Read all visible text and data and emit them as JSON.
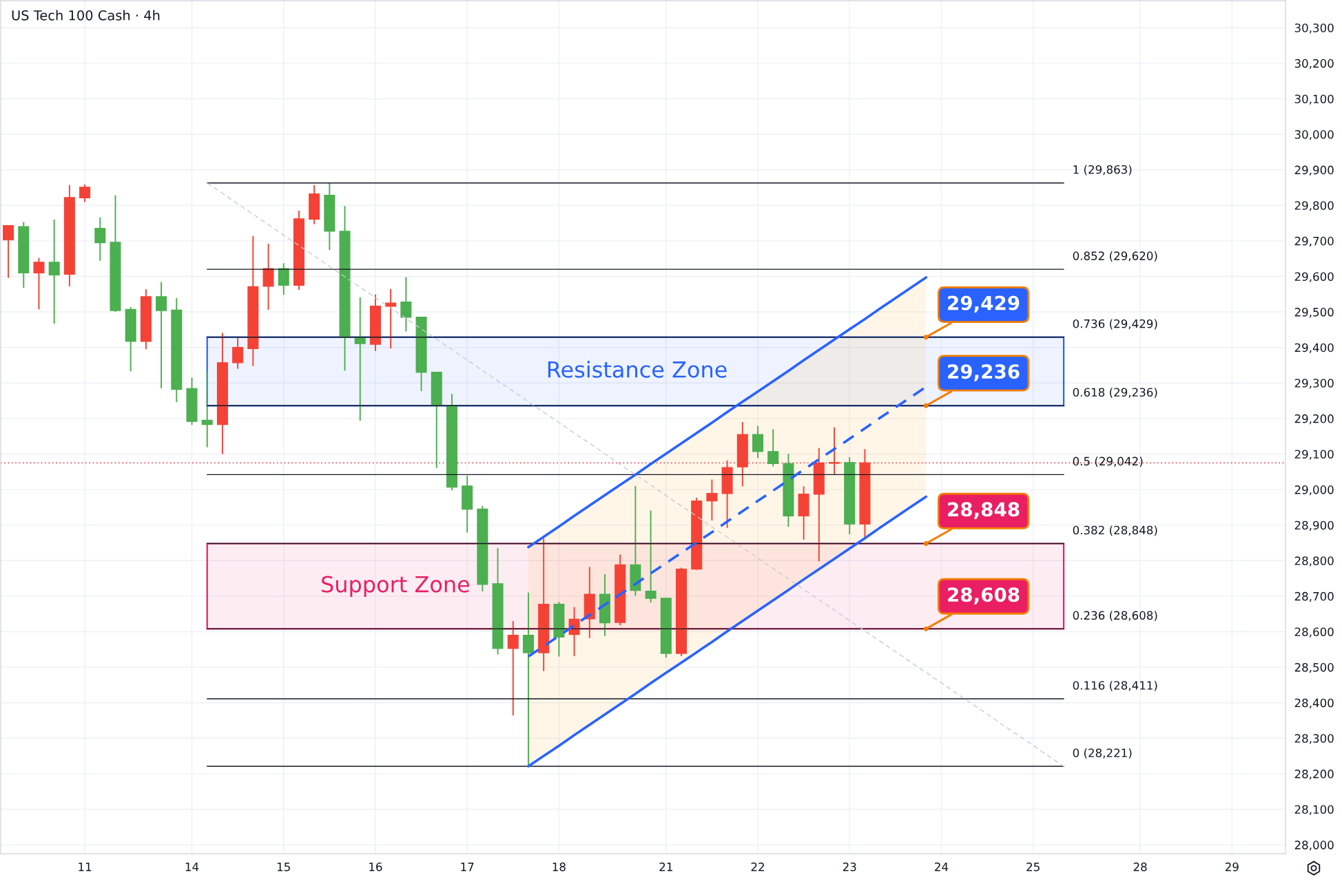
{
  "chart_data": {
    "type": "candlestick",
    "title": "US Tech 100 Cash · 4h",
    "categories": [
      null,
      null,
      null,
      null,
      null,
      "11",
      null,
      null,
      null,
      null,
      null,
      null,
      "14",
      null,
      null,
      null,
      null,
      null,
      "15",
      null,
      null,
      null,
      null,
      null,
      "16",
      null,
      null,
      null,
      null,
      null,
      "17",
      null,
      null,
      null,
      null,
      null,
      "18",
      null,
      null,
      null,
      null,
      null,
      null,
      "21",
      null,
      null,
      null,
      null,
      null,
      "22",
      null,
      null,
      null,
      null,
      null,
      "23",
      null,
      null,
      null,
      null,
      null,
      "24",
      null,
      null,
      null,
      null,
      null,
      "25",
      null,
      null,
      null,
      null,
      null,
      null,
      "28",
      null,
      null,
      null,
      null,
      null,
      "29",
      null,
      null,
      null
    ],
    "ohlc": [
      [
        29703,
        29744,
        29596,
        29743
      ],
      [
        29740,
        29753,
        29568,
        29610
      ],
      [
        29610,
        29652,
        29507,
        29640
      ],
      [
        29640,
        29760,
        29467,
        29604
      ],
      [
        29606,
        29857,
        29572,
        29822
      ],
      [
        29821,
        29859,
        29809,
        29851
      ],
      [
        29735,
        29766,
        29644,
        29695
      ],
      [
        29696,
        29828,
        29500,
        29504
      ],
      [
        29507,
        29514,
        29333,
        29417
      ],
      [
        29417,
        29564,
        29395,
        29543
      ],
      [
        29543,
        29584,
        29285,
        29504
      ],
      [
        29505,
        29539,
        29246,
        29282
      ],
      [
        29284,
        29315,
        29182,
        29192
      ],
      [
        29195,
        29333,
        29119,
        29183
      ],
      [
        29183,
        29441,
        29100,
        29357
      ],
      [
        29357,
        29429,
        29340,
        29400
      ],
      [
        29397,
        29714,
        29348,
        29571
      ],
      [
        29572,
        29692,
        29506,
        29622
      ],
      [
        29622,
        29637,
        29548,
        29575
      ],
      [
        29575,
        29785,
        29562,
        29762
      ],
      [
        29761,
        29857,
        29747,
        29832
      ],
      [
        29828,
        29863,
        29674,
        29727
      ],
      [
        29727,
        29798,
        29335,
        29429
      ],
      [
        29429,
        29541,
        29194,
        29411
      ],
      [
        29409,
        29549,
        29390,
        29516
      ],
      [
        29516,
        29564,
        29397,
        29525
      ],
      [
        29528,
        29598,
        29445,
        29485
      ],
      [
        29485,
        29485,
        29277,
        29330
      ],
      [
        29330,
        29330,
        29061,
        29237
      ],
      [
        29236,
        29269,
        28998,
        29007
      ],
      [
        29010,
        29039,
        28879,
        28945
      ],
      [
        28945,
        28954,
        28713,
        28733
      ],
      [
        28735,
        28835,
        28536,
        28553
      ],
      [
        28553,
        28630,
        28364,
        28590
      ],
      [
        28590,
        28710,
        28221,
        28541
      ],
      [
        28541,
        28862,
        28489,
        28677
      ],
      [
        28677,
        28684,
        28530,
        28585
      ],
      [
        28592,
        28669,
        28531,
        28635
      ],
      [
        28636,
        28782,
        28582,
        28705
      ],
      [
        28705,
        28762,
        28588,
        28625
      ],
      [
        28626,
        28817,
        28618,
        28788
      ],
      [
        28788,
        29010,
        28701,
        28716
      ],
      [
        28714,
        28941,
        28682,
        28694
      ],
      [
        28694,
        28694,
        28527,
        28539
      ],
      [
        28539,
        28780,
        28531,
        28776
      ],
      [
        28776,
        28977,
        28774,
        28968
      ],
      [
        28968,
        29028,
        28913,
        28989
      ],
      [
        28989,
        29082,
        28892,
        29062
      ],
      [
        29064,
        29190,
        29009,
        29155
      ],
      [
        29155,
        29179,
        29089,
        29107
      ],
      [
        29107,
        29170,
        29065,
        29073
      ],
      [
        29073,
        29101,
        28895,
        28926
      ],
      [
        28926,
        29009,
        28859,
        28987
      ],
      [
        28987,
        29117,
        28798,
        29075
      ],
      [
        29074,
        29175,
        29041,
        29076
      ],
      [
        29076,
        29091,
        28874,
        28903
      ],
      [
        28903,
        29114,
        28862,
        29075
      ],
      null,
      null,
      null,
      null,
      null,
      null,
      null,
      null,
      null,
      null,
      null,
      null,
      null,
      null,
      null,
      null,
      null,
      null,
      null,
      null,
      null,
      null,
      null,
      null,
      null,
      null,
      null
    ],
    "colors": [
      "#f44336",
      "#4caf50",
      "#f44336",
      "#4caf50",
      "#f44336",
      "#f44336",
      "#4caf50",
      "#4caf50",
      "#4caf50",
      "#f44336",
      "#4caf50",
      "#4caf50",
      "#4caf50",
      "#4caf50",
      "#f44336",
      "#f44336",
      "#f44336",
      "#f44336",
      "#4caf50",
      "#f44336",
      "#f44336",
      "#4caf50",
      "#4caf50",
      "#4caf50",
      "#f44336",
      "#f44336",
      "#4caf50",
      "#4caf50",
      "#4caf50",
      "#4caf50",
      "#4caf50",
      "#4caf50",
      "#4caf50",
      "#f44336",
      "#4caf50",
      "#f44336",
      "#4caf50",
      "#f44336",
      "#f44336",
      "#4caf50",
      "#f44336",
      "#4caf50",
      "#4caf50",
      "#4caf50",
      "#f44336",
      "#f44336",
      "#f44336",
      "#f44336",
      "#f44336",
      "#4caf50",
      "#4caf50",
      "#4caf50",
      "#f44336",
      "#f44336",
      "#f44336",
      "#4caf50",
      "#f44336",
      null,
      null,
      null,
      null,
      null,
      null,
      null,
      null,
      null,
      null,
      null,
      null,
      null,
      null,
      null,
      null,
      null,
      null,
      null,
      null,
      null,
      null,
      null,
      null,
      null,
      null,
      null
    ],
    "series": [
      {
        "type": "line",
        "name": "1 (29,863)",
        "color": "#131722",
        "values": [
          null,
          null,
          null,
          null,
          null,
          null,
          null,
          null,
          null,
          null,
          null,
          null,
          null,
          29863,
          29863,
          29863,
          29863,
          29863,
          29863,
          29863,
          29863,
          29863,
          29863,
          29863,
          29863,
          29863,
          29863,
          29863,
          29863,
          29863,
          29863,
          29863,
          29863,
          29863,
          29863,
          29863,
          29863,
          29863,
          29863,
          29863,
          29863,
          29863,
          29863,
          29863,
          29863,
          29863,
          29863,
          29863,
          29863,
          29863,
          29863,
          29863,
          29863,
          29863,
          29863,
          29863,
          29863,
          29863,
          29863,
          29863,
          29863,
          29863,
          29863,
          29863,
          29863,
          29863,
          29863,
          29863,
          29863,
          29863,
          null,
          null,
          null,
          null,
          null,
          null,
          null,
          null,
          null,
          null,
          null,
          null,
          null,
          null
        ]
      },
      {
        "type": "line",
        "name": "0.852 (29,620)",
        "color": "#131722",
        "values": [
          null,
          null,
          null,
          null,
          null,
          null,
          null,
          null,
          null,
          null,
          null,
          null,
          null,
          29620,
          29620,
          29620,
          29620,
          29620,
          29620,
          29620,
          29620,
          29620,
          29620,
          29620,
          29620,
          29620,
          29620,
          29620,
          29620,
          29620,
          29620,
          29620,
          29620,
          29620,
          29620,
          29620,
          29620,
          29620,
          29620,
          29620,
          29620,
          29620,
          29620,
          29620,
          29620,
          29620,
          29620,
          29620,
          29620,
          29620,
          29620,
          29620,
          29620,
          29620,
          29620,
          29620,
          29620,
          29620,
          29620,
          29620,
          29620,
          29620,
          29620,
          29620,
          29620,
          29620,
          29620,
          29620,
          29620,
          29620,
          null,
          null,
          null,
          null,
          null,
          null,
          null,
          null,
          null,
          null,
          null,
          null,
          null,
          null
        ]
      },
      {
        "type": "line",
        "name": "0.736 (29,429)",
        "color": "#131722",
        "values": [
          null,
          null,
          null,
          null,
          null,
          null,
          null,
          null,
          null,
          null,
          null,
          null,
          null,
          29429,
          29429,
          29429,
          29429,
          29429,
          29429,
          29429,
          29429,
          29429,
          29429,
          29429,
          29429,
          29429,
          29429,
          29429,
          29429,
          29429,
          29429,
          29429,
          29429,
          29429,
          29429,
          29429,
          29429,
          29429,
          29429,
          29429,
          29429,
          29429,
          29429,
          29429,
          29429,
          29429,
          29429,
          29429,
          29429,
          29429,
          29429,
          29429,
          29429,
          29429,
          29429,
          29429,
          29429,
          29429,
          29429,
          29429,
          29429,
          29429,
          29429,
          29429,
          29429,
          29429,
          29429,
          29429,
          29429,
          29429,
          null,
          null,
          null,
          null,
          null,
          null,
          null,
          null,
          null,
          null,
          null,
          null,
          null,
          null
        ]
      },
      {
        "type": "line",
        "name": "0.618 (29,236)",
        "color": "#131722",
        "values": [
          null,
          null,
          null,
          null,
          null,
          null,
          null,
          null,
          null,
          null,
          null,
          null,
          null,
          29236,
          29236,
          29236,
          29236,
          29236,
          29236,
          29236,
          29236,
          29236,
          29236,
          29236,
          29236,
          29236,
          29236,
          29236,
          29236,
          29236,
          29236,
          29236,
          29236,
          29236,
          29236,
          29236,
          29236,
          29236,
          29236,
          29236,
          29236,
          29236,
          29236,
          29236,
          29236,
          29236,
          29236,
          29236,
          29236,
          29236,
          29236,
          29236,
          29236,
          29236,
          29236,
          29236,
          29236,
          29236,
          29236,
          29236,
          29236,
          29236,
          29236,
          29236,
          29236,
          29236,
          29236,
          29236,
          29236,
          29236,
          null,
          null,
          null,
          null,
          null,
          null,
          null,
          null,
          null,
          null,
          null,
          null,
          null,
          null
        ]
      },
      {
        "type": "line",
        "name": "0.5 (29,042)",
        "color": "#131722",
        "values": [
          null,
          null,
          null,
          null,
          null,
          null,
          null,
          null,
          null,
          null,
          null,
          null,
          null,
          29042,
          29042,
          29042,
          29042,
          29042,
          29042,
          29042,
          29042,
          29042,
          29042,
          29042,
          29042,
          29042,
          29042,
          29042,
          29042,
          29042,
          29042,
          29042,
          29042,
          29042,
          29042,
          29042,
          29042,
          29042,
          29042,
          29042,
          29042,
          29042,
          29042,
          29042,
          29042,
          29042,
          29042,
          29042,
          29042,
          29042,
          29042,
          29042,
          29042,
          29042,
          29042,
          29042,
          29042,
          29042,
          29042,
          29042,
          29042,
          29042,
          29042,
          29042,
          29042,
          29042,
          29042,
          29042,
          29042,
          29042,
          null,
          null,
          null,
          null,
          null,
          null,
          null,
          null,
          null,
          null,
          null,
          null,
          null,
          null
        ]
      },
      {
        "type": "line",
        "name": "0.382 (28,848)",
        "color": "#131722",
        "values": [
          null,
          null,
          null,
          null,
          null,
          null,
          null,
          null,
          null,
          null,
          null,
          null,
          null,
          28848,
          28848,
          28848,
          28848,
          28848,
          28848,
          28848,
          28848,
          28848,
          28848,
          28848,
          28848,
          28848,
          28848,
          28848,
          28848,
          28848,
          28848,
          28848,
          28848,
          28848,
          28848,
          28848,
          28848,
          28848,
          28848,
          28848,
          28848,
          28848,
          28848,
          28848,
          28848,
          28848,
          28848,
          28848,
          28848,
          28848,
          28848,
          28848,
          28848,
          28848,
          28848,
          28848,
          28848,
          28848,
          28848,
          28848,
          28848,
          28848,
          28848,
          28848,
          28848,
          28848,
          28848,
          28848,
          28848,
          28848,
          null,
          null,
          null,
          null,
          null,
          null,
          null,
          null,
          null,
          null,
          null,
          null,
          null,
          null
        ]
      },
      {
        "type": "line",
        "name": "0.236 (28,608)",
        "color": "#131722",
        "values": [
          null,
          null,
          null,
          null,
          null,
          null,
          null,
          null,
          null,
          null,
          null,
          null,
          null,
          28608,
          28608,
          28608,
          28608,
          28608,
          28608,
          28608,
          28608,
          28608,
          28608,
          28608,
          28608,
          28608,
          28608,
          28608,
          28608,
          28608,
          28608,
          28608,
          28608,
          28608,
          28608,
          28608,
          28608,
          28608,
          28608,
          28608,
          28608,
          28608,
          28608,
          28608,
          28608,
          28608,
          28608,
          28608,
          28608,
          28608,
          28608,
          28608,
          28608,
          28608,
          28608,
          28608,
          28608,
          28608,
          28608,
          28608,
          28608,
          28608,
          28608,
          28608,
          28608,
          28608,
          28608,
          28608,
          28608,
          28608,
          null,
          null,
          null,
          null,
          null,
          null,
          null,
          null,
          null,
          null,
          null,
          null,
          null,
          null
        ]
      },
      {
        "type": "line",
        "name": "0.116 (28,411)",
        "color": "#131722",
        "values": [
          null,
          null,
          null,
          null,
          null,
          null,
          null,
          null,
          null,
          null,
          null,
          null,
          null,
          28411,
          28411,
          28411,
          28411,
          28411,
          28411,
          28411,
          28411,
          28411,
          28411,
          28411,
          28411,
          28411,
          28411,
          28411,
          28411,
          28411,
          28411,
          28411,
          28411,
          28411,
          28411,
          28411,
          28411,
          28411,
          28411,
          28411,
          28411,
          28411,
          28411,
          28411,
          28411,
          28411,
          28411,
          28411,
          28411,
          28411,
          28411,
          28411,
          28411,
          28411,
          28411,
          28411,
          28411,
          28411,
          28411,
          28411,
          28411,
          28411,
          28411,
          28411,
          28411,
          28411,
          28411,
          28411,
          28411,
          28411,
          null,
          null,
          null,
          null,
          null,
          null,
          null,
          null,
          null,
          null,
          null,
          null,
          null,
          null
        ]
      },
      {
        "type": "line",
        "name": "0 (28,221)",
        "color": "#131722",
        "values": [
          null,
          null,
          null,
          null,
          null,
          null,
          null,
          null,
          null,
          null,
          null,
          null,
          null,
          28221,
          28221,
          28221,
          28221,
          28221,
          28221,
          28221,
          28221,
          28221,
          28221,
          28221,
          28221,
          28221,
          28221,
          28221,
          28221,
          28221,
          28221,
          28221,
          28221,
          28221,
          28221,
          28221,
          28221,
          28221,
          28221,
          28221,
          28221,
          28221,
          28221,
          28221,
          28221,
          28221,
          28221,
          28221,
          28221,
          28221,
          28221,
          28221,
          28221,
          28221,
          28221,
          28221,
          28221,
          28221,
          28221,
          28221,
          28221,
          28221,
          28221,
          28221,
          28221,
          28221,
          28221,
          28221,
          28221,
          28221,
          null,
          null,
          null,
          null,
          null,
          null,
          null,
          null,
          null,
          null,
          null,
          null,
          null,
          null
        ]
      },
      {
        "type": "line",
        "color": "#c8cbd2",
        "line_style": "dashed",
        "values": [
          null,
          null,
          null,
          null,
          null,
          null,
          null,
          null,
          null,
          null,
          null,
          null,
          null,
          29863,
          29834,
          29804,
          29775,
          29746,
          29716,
          29687,
          29658,
          29628,
          29599,
          29570,
          29540,
          29511,
          29482,
          29452,
          29423,
          29394,
          29365,
          29335,
          29306,
          29277,
          29247,
          29218,
          29189,
          29159,
          29130,
          29101,
          29071,
          29042,
          29013,
          28983,
          28954,
          28925,
          28895,
          28866,
          28837,
          28807,
          28778,
          28749,
          28719,
          28690,
          28661,
          28631,
          28602,
          28573,
          28544,
          28514,
          28485,
          28456,
          28426,
          28397,
          28368,
          28338,
          28309,
          28280,
          28250,
          28221,
          null,
          null,
          null,
          null,
          null,
          null,
          null,
          null,
          null,
          null,
          null,
          null,
          null,
          null
        ]
      },
      {
        "type": "line",
        "color": "#2962ff",
        "line_style": "dashed",
        "values": [
          null,
          null,
          null,
          null,
          null,
          null,
          null,
          null,
          null,
          null,
          null,
          null,
          null,
          null,
          null,
          null,
          null,
          null,
          null,
          null,
          null,
          null,
          null,
          null,
          null,
          null,
          null,
          null,
          null,
          null,
          null,
          null,
          null,
          null,
          28530,
          28559,
          28588,
          28618,
          28647,
          28676,
          28705,
          28734,
          28764,
          28793,
          28822,
          28851,
          28880,
          28910,
          28939,
          28968,
          28997,
          29026,
          29056,
          29085,
          29114,
          29143,
          29172,
          29202,
          29231,
          29260,
          29289,
          null,
          null,
          null,
          null,
          null,
          null,
          null,
          null,
          null,
          null,
          null,
          null,
          null,
          null,
          null,
          null,
          null,
          null,
          null,
          null,
          null,
          null,
          null
        ],
        "lower": [
          null,
          null,
          null,
          null,
          null,
          null,
          null,
          null,
          null,
          null,
          null,
          null,
          null,
          null,
          null,
          null,
          null,
          null,
          null,
          null,
          null,
          null,
          null,
          null,
          null,
          null,
          null,
          null,
          null,
          null,
          null,
          null,
          null,
          null,
          28221,
          28250,
          28279,
          28309,
          28338,
          28367,
          28396,
          28425,
          28455,
          28484,
          28513,
          28542,
          28571,
          28601,
          28630,
          28659,
          28688,
          28717,
          28747,
          28776,
          28805,
          28834,
          28863,
          28893,
          28922,
          28951,
          28980,
          null,
          null,
          null,
          null,
          null,
          null,
          null,
          null,
          null,
          null,
          null,
          null,
          null,
          null,
          null,
          null,
          null,
          null,
          null,
          null,
          null,
          null,
          null
        ],
        "upper": [
          null,
          null,
          null,
          null,
          null,
          null,
          null,
          null,
          null,
          null,
          null,
          null,
          null,
          null,
          null,
          null,
          null,
          null,
          null,
          null,
          null,
          null,
          null,
          null,
          null,
          null,
          null,
          null,
          null,
          null,
          null,
          null,
          null,
          null,
          28838,
          28867,
          28896,
          28926,
          28955,
          28984,
          29013,
          29042,
          29072,
          29101,
          29130,
          29159,
          29188,
          29218,
          29247,
          29276,
          29305,
          29334,
          29364,
          29393,
          29422,
          29451,
          29480,
          29510,
          29539,
          29568,
          29597,
          null,
          null,
          null,
          null,
          null,
          null,
          null,
          null,
          null,
          null,
          null,
          null,
          null,
          null,
          null,
          null,
          null,
          null,
          null,
          null,
          null,
          null,
          null
        ]
      },
      {
        "type": "line",
        "color": "#2962ff",
        "values": [
          null,
          null,
          null,
          null,
          null,
          null,
          null,
          null,
          null,
          null,
          null,
          null,
          null,
          null,
          null,
          null,
          null,
          null,
          null,
          null,
          null,
          null,
          null,
          null,
          null,
          null,
          null,
          null,
          null,
          null,
          null,
          null,
          null,
          null,
          28221,
          28250,
          28279,
          28309,
          28338,
          28367,
          28396,
          28425,
          28455,
          28484,
          28513,
          28542,
          28571,
          28601,
          28630,
          28659,
          28688,
          28717,
          28747,
          28776,
          28805,
          28834,
          28863,
          28893,
          28922,
          28951,
          28980,
          null,
          null,
          null,
          null,
          null,
          null,
          null,
          null,
          null,
          null,
          null,
          null,
          null,
          null,
          null,
          null,
          null,
          null,
          null,
          null,
          null,
          null,
          null
        ]
      },
      {
        "type": "line",
        "color": "#2962ff",
        "values": [
          null,
          null,
          null,
          null,
          null,
          null,
          null,
          null,
          null,
          null,
          null,
          null,
          null,
          null,
          null,
          null,
          null,
          null,
          null,
          null,
          null,
          null,
          null,
          null,
          null,
          null,
          null,
          null,
          null,
          null,
          null,
          null,
          null,
          null,
          28838,
          28867,
          28896,
          28926,
          28955,
          28984,
          29013,
          29042,
          29072,
          29101,
          29130,
          29159,
          29188,
          29218,
          29247,
          29276,
          29305,
          29334,
          29364,
          29393,
          29422,
          29451,
          29480,
          29510,
          29539,
          29568,
          29597,
          null,
          null,
          null,
          null,
          null,
          null,
          null,
          null,
          null,
          null,
          null,
          null,
          null,
          null,
          null,
          null,
          null,
          null,
          null,
          null,
          null,
          null,
          null
        ]
      }
    ],
    "bands": [
      {
        "axis": "y",
        "from": 29236,
        "to": 29429,
        "label": "Resistance Zone",
        "color": "#2962ff"
      },
      {
        "axis": "y",
        "from": 28608,
        "to": 28848,
        "label": "Support Zone",
        "color": "#e91e63"
      }
    ],
    "ref_lines": [
      {
        "axis": "y",
        "value": 29075,
        "color": "#f23645",
        "line_style": "dotted"
      }
    ],
    "annotations": [
      {
        "text": "29,429",
        "y": 29429
      },
      {
        "text": "29,236",
        "y": 29236
      },
      {
        "text": "28,848",
        "y": 28848
      },
      {
        "text": "28,608",
        "y": 28608
      }
    ],
    "ylim": [
      27975,
      30376
    ],
    "yticks": [
      {
        "value": 28000,
        "label": "28,000"
      },
      {
        "value": 28100,
        "label": "28,100"
      },
      {
        "value": 28200,
        "label": "28,200"
      },
      {
        "value": 28300,
        "label": "28,300"
      },
      {
        "value": 28400,
        "label": "28,400"
      },
      {
        "value": 28500,
        "label": "28,500"
      },
      {
        "value": 28600,
        "label": "28,600"
      },
      {
        "value": 28700,
        "label": "28,700"
      },
      {
        "value": 28800,
        "label": "28,800"
      },
      {
        "value": 28900,
        "label": "28,900"
      },
      {
        "value": 29000,
        "label": "29,000"
      },
      {
        "value": 29100,
        "label": "29,100"
      },
      {
        "value": 29200,
        "label": "29,200"
      },
      {
        "value": 29300,
        "label": "29,300"
      },
      {
        "value": 29400,
        "label": "29,400"
      },
      {
        "value": 29500,
        "label": "29,500"
      },
      {
        "value": 29600,
        "label": "29,600"
      },
      {
        "value": 29700,
        "label": "29,700"
      },
      {
        "value": 29800,
        "label": "29,800"
      },
      {
        "value": 29900,
        "label": "29,900"
      },
      {
        "value": 30000,
        "label": "30,000"
      },
      {
        "value": 30100,
        "label": "30,100"
      },
      {
        "value": 30200,
        "label": "30,200"
      },
      {
        "value": 30300,
        "label": "30,300"
      }
    ],
    "grid": true
  }
}
